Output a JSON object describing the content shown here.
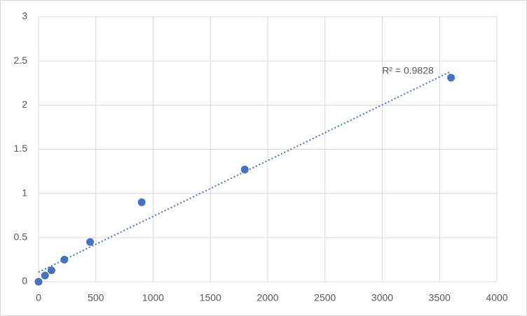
{
  "chart_data": {
    "type": "scatter",
    "x": [
      0,
      56.25,
      112.5,
      225,
      450,
      900,
      1800,
      3600
    ],
    "values": [
      0,
      0.07,
      0.13,
      0.25,
      0.45,
      0.9,
      1.27,
      2.31
    ],
    "color": "#4472c4",
    "xlim": [
      0,
      4000
    ],
    "xticks": [
      0,
      500,
      1000,
      1500,
      2000,
      2500,
      3000,
      3500,
      4000
    ],
    "ylim": [
      0,
      3
    ],
    "yticks": [
      0,
      0.5,
      1,
      1.5,
      2,
      2.5,
      3
    ],
    "grid": true,
    "trendline": "linear",
    "annotation": "R² = 0.9828"
  }
}
